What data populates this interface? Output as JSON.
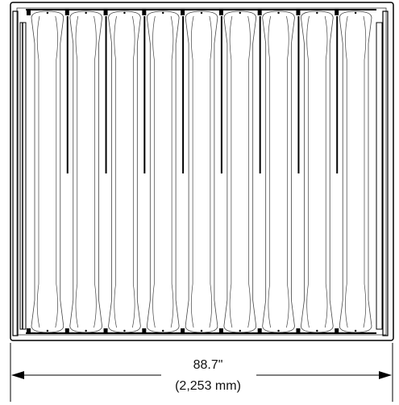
{
  "drawing": {
    "slat_count": 9,
    "line_color": "#000000",
    "thin_line_color": "#444444",
    "background": "#ffffff"
  },
  "dimension": {
    "imperial": "88.7\"",
    "metric": "(2,253 mm)"
  }
}
